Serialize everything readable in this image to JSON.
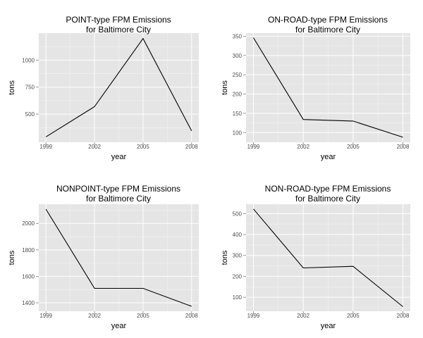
{
  "chart_data": [
    {
      "type": "line",
      "title": [
        "POINT-type FPM Emissions",
        "for Baltimore City"
      ],
      "xlabel": "year",
      "ylabel": "tons",
      "x": [
        1999,
        2002,
        2005,
        2008
      ],
      "values": [
        290,
        570,
        1200,
        345
      ],
      "xlim": [
        1999,
        2008
      ],
      "ylim": [
        240,
        1250
      ],
      "yticks": [
        500,
        750,
        1000
      ],
      "xticks": [
        1999,
        2002,
        2005,
        2008
      ],
      "grid": true
    },
    {
      "type": "line",
      "title": [
        "ON-ROAD-type FPM Emissions",
        "for Baltimore City"
      ],
      "xlabel": "year",
      "ylabel": "tons",
      "x": [
        1999,
        2002,
        2005,
        2008
      ],
      "values": [
        346,
        134,
        130,
        88
      ],
      "xlim": [
        1999,
        2008
      ],
      "ylim": [
        75,
        358
      ],
      "yticks": [
        100,
        150,
        200,
        250,
        300,
        350
      ],
      "xticks": [
        1999,
        2002,
        2005,
        2008
      ],
      "grid": true
    },
    {
      "type": "line",
      "title": [
        "NONPOINT-type FPM Emissions",
        "for Baltimore City"
      ],
      "xlabel": "year",
      "ylabel": "tons",
      "x": [
        1999,
        2002,
        2005,
        2008
      ],
      "values": [
        2107,
        1509,
        1509,
        1373
      ],
      "xlim": [
        1999,
        2008
      ],
      "ylim": [
        1336,
        2145
      ],
      "yticks": [
        1400,
        1600,
        1800,
        2000
      ],
      "xticks": [
        1999,
        2002,
        2005,
        2008
      ],
      "grid": true
    },
    {
      "type": "line",
      "title": [
        "NON-ROAD-type FPM Emissions",
        "for Baltimore City"
      ],
      "xlabel": "year",
      "ylabel": "tons",
      "x": [
        1999,
        2002,
        2005,
        2008
      ],
      "values": [
        522,
        240,
        248,
        55
      ],
      "xlim": [
        1999,
        2008
      ],
      "ylim": [
        33,
        545
      ],
      "yticks": [
        100,
        200,
        300,
        400,
        500
      ],
      "xticks": [
        1999,
        2002,
        2005,
        2008
      ],
      "grid": true
    }
  ]
}
